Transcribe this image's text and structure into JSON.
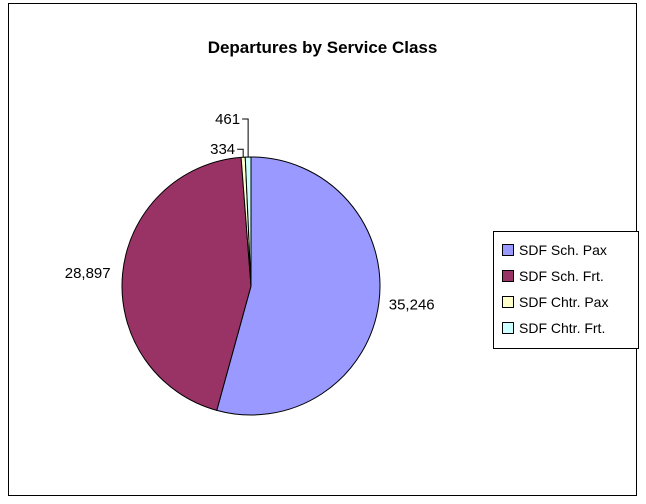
{
  "chart_data": {
    "type": "pie",
    "title": "Departures by Service Class",
    "categories": [
      "SDF Sch. Pax",
      "SDF Sch. Frt.",
      "SDF Chtr. Pax",
      "SDF Chtr. Frt."
    ],
    "values": [
      35246,
      28897,
      334,
      461
    ],
    "value_labels": [
      "35,246",
      "28,897",
      "334",
      "461"
    ],
    "colors": [
      "#9999FF",
      "#993366",
      "#FFFFCC",
      "#CCFFFF"
    ],
    "legend_position": "right"
  }
}
